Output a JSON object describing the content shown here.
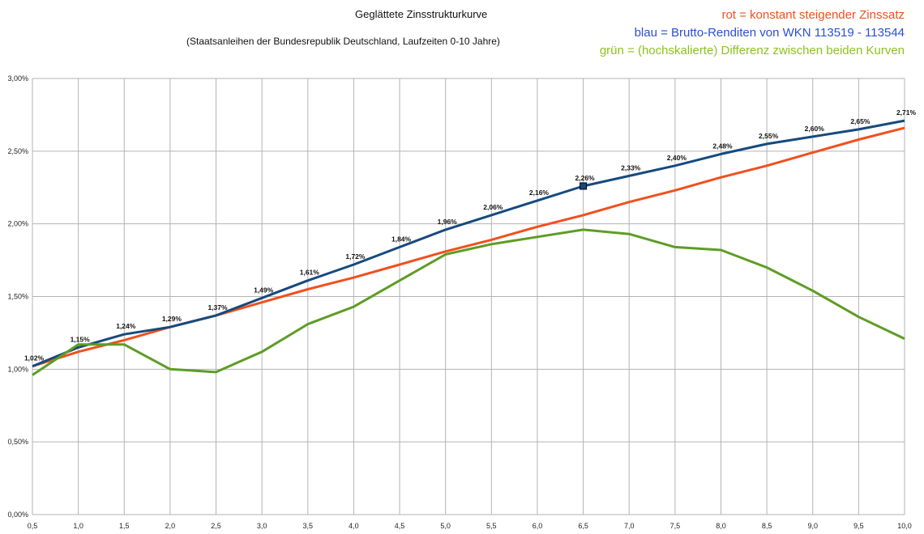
{
  "chart_data": {
    "type": "line",
    "title": "Geglättete Zinsstrukturkurve",
    "subtitle": "(Staatsanleihen der Bundesrepublik Deutschland, Laufzeiten 0-10 Jahre)",
    "x": [
      0.5,
      1.0,
      1.5,
      2.0,
      2.5,
      3.0,
      3.5,
      4.0,
      4.5,
      5.0,
      5.5,
      6.0,
      6.5,
      7.0,
      7.5,
      8.0,
      8.5,
      9.0,
      9.5,
      10.0
    ],
    "x_tick_labels": [
      "0,5",
      "1,0",
      "1,5",
      "2,0",
      "2,5",
      "3,0",
      "3,5",
      "4,0",
      "4,5",
      "5,0",
      "5,5",
      "6,0",
      "6,5",
      "7,0",
      "7,5",
      "8,0",
      "8,5",
      "9,0",
      "9,5",
      "10,0"
    ],
    "xlim": [
      0.5,
      10.0
    ],
    "ylim": [
      0,
      3.0
    ],
    "y_ticks": [
      0,
      0.5,
      1.0,
      1.5,
      2.0,
      2.5,
      3.0
    ],
    "y_tick_labels": [
      "0,00%",
      "0,50%",
      "1,00%",
      "1,50%",
      "2,00%",
      "2,50%",
      "3,00%"
    ],
    "grid": true,
    "legend_position": "top-right",
    "series": [
      {
        "key": "rot",
        "color": "#f0501e",
        "values": [
          1.02,
          1.12,
          1.2,
          1.29,
          1.37,
          1.46,
          1.55,
          1.63,
          1.72,
          1.81,
          1.89,
          1.98,
          2.06,
          2.15,
          2.23,
          2.32,
          2.4,
          2.49,
          2.58,
          2.66
        ]
      },
      {
        "key": "blau",
        "color": "#154a7e",
        "values": [
          1.02,
          1.15,
          1.24,
          1.29,
          1.37,
          1.49,
          1.61,
          1.72,
          1.84,
          1.96,
          2.06,
          2.16,
          2.26,
          2.33,
          2.4,
          2.48,
          2.55,
          2.6,
          2.65,
          2.71
        ],
        "data_labels": [
          "1,02%",
          "1,15%",
          "1,24%",
          "1,29%",
          "1,37%",
          "1,49%",
          "1,61%",
          "1,72%",
          "1,84%",
          "1,96%",
          "2,06%",
          "2,16%",
          "2,26%",
          "2,33%",
          "2,40%",
          "2,48%",
          "2,55%",
          "2,60%",
          "2,65%",
          "2,71%"
        ],
        "highlight_marker_index": 12
      },
      {
        "key": "gruen",
        "color": "#5e9c25",
        "values": [
          0.96,
          1.17,
          1.17,
          1.0,
          0.98,
          1.12,
          1.31,
          1.43,
          1.61,
          1.79,
          1.86,
          1.91,
          1.96,
          1.93,
          1.84,
          1.82,
          1.7,
          1.54,
          1.36,
          1.21
        ]
      }
    ]
  },
  "legend": {
    "red": {
      "text": "rot = konstant steigender Zinssatz",
      "color": "#f0501e"
    },
    "blue": {
      "text": "blau = Brutto-Renditen von WKN 113519 - 113544",
      "color": "#2a4fd4"
    },
    "green": {
      "text": "grün = (hochskalierte) Differenz zwischen beiden Kurven",
      "color": "#8cc21e"
    }
  }
}
